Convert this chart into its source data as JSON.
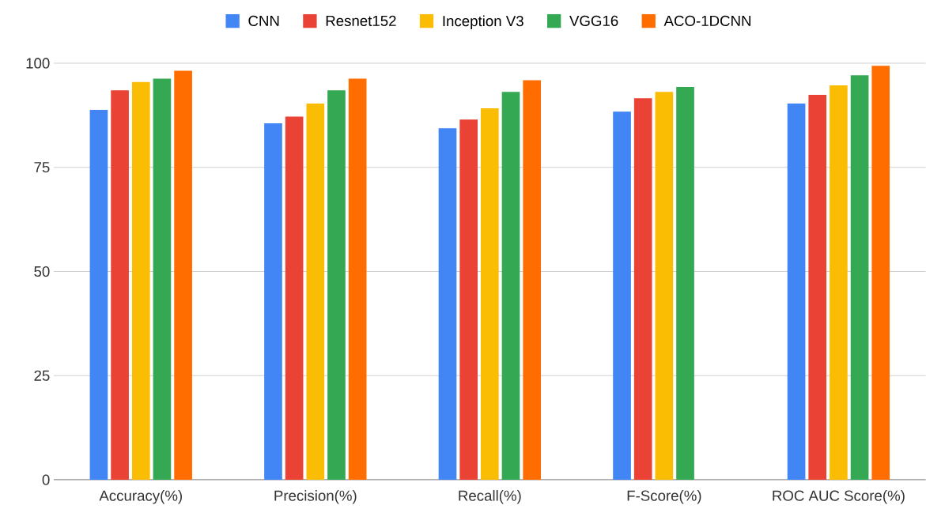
{
  "chart_data": {
    "type": "bar",
    "categories": [
      "Accuracy(%)",
      "Precision(%)",
      "Recall(%)",
      "F-Score(%)",
      "ROC AUC Score(%)"
    ],
    "series": [
      {
        "name": "CNN",
        "color": "#4285f4",
        "values": [
          88.8,
          85.6,
          84.4,
          88.4,
          90.3
        ]
      },
      {
        "name": "Resnet152",
        "color": "#ea4335",
        "values": [
          93.5,
          87.2,
          86.5,
          91.6,
          92.4
        ]
      },
      {
        "name": "Inception V3",
        "color": "#fbbc04",
        "values": [
          95.5,
          90.3,
          89.2,
          93.1,
          94.7
        ]
      },
      {
        "name": "VGG16",
        "color": "#34a853",
        "values": [
          96.3,
          93.5,
          93.1,
          94.3,
          97.1
        ]
      },
      {
        "name": "ACO-1DCNN",
        "color": "#ff6d01",
        "values": [
          98.2,
          96.3,
          95.9,
          null,
          99.4
        ]
      }
    ],
    "ylim": [
      0,
      100
    ],
    "yticks": [
      0,
      25,
      50,
      75,
      100
    ],
    "grid": "y",
    "legend": "top"
  }
}
